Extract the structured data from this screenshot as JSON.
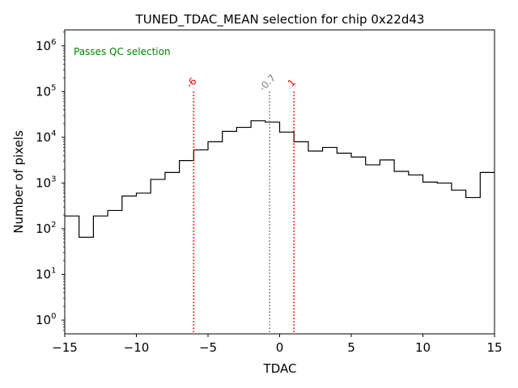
{
  "chart_data": {
    "type": "histogram",
    "title": "TUNED_TDAC_MEAN selection for chip 0x22d43",
    "xlabel": "TDAC",
    "ylabel": "Number of pixels",
    "xlim": [
      -15,
      15
    ],
    "ylim_log10": [
      -0.3,
      6.35
    ],
    "yscale": "log",
    "x_ticks": [
      -15,
      -10,
      -5,
      0,
      5,
      10,
      15
    ],
    "x_tick_labels": [
      "−15",
      "−10",
      "−5",
      "0",
      "5",
      "10",
      "15"
    ],
    "y_ticks": [
      {
        "base": "10",
        "exp": "0",
        "value": 1
      },
      {
        "base": "10",
        "exp": "1",
        "value": 10
      },
      {
        "base": "10",
        "exp": "2",
        "value": 100
      },
      {
        "base": "10",
        "exp": "3",
        "value": 1000
      },
      {
        "base": "10",
        "exp": "4",
        "value": 10000
      },
      {
        "base": "10",
        "exp": "5",
        "value": 100000
      },
      {
        "base": "10",
        "exp": "6",
        "value": 1000000
      }
    ],
    "bin_edges": [
      -15,
      -14,
      -13,
      -12,
      -11,
      -10,
      -9,
      -8,
      -7,
      -6,
      -5,
      -4,
      -3,
      -2,
      -1,
      0,
      1,
      2,
      3,
      4,
      5,
      6,
      7,
      8,
      9,
      10,
      11,
      12,
      13,
      14,
      15
    ],
    "counts": [
      190,
      65,
      190,
      250,
      520,
      600,
      1200,
      1700,
      3100,
      5300,
      8000,
      13500,
      16500,
      23000,
      21500,
      13000,
      8000,
      5000,
      6000,
      4500,
      3700,
      2500,
      3200,
      1800,
      1500,
      1050,
      1000,
      700,
      480,
      1700
    ],
    "vlines": [
      {
        "x": -6,
        "label": "-6",
        "color": "#ff0000",
        "ymax_value": 100000
      },
      {
        "x": -0.7,
        "label": "-0.7",
        "color": "#808080",
        "ymax_value": 100000
      },
      {
        "x": 1,
        "label": "1",
        "color": "#ff0000",
        "ymax_value": 100000
      }
    ],
    "annotation": {
      "text": "Passes QC selection",
      "color": "#008000"
    }
  }
}
